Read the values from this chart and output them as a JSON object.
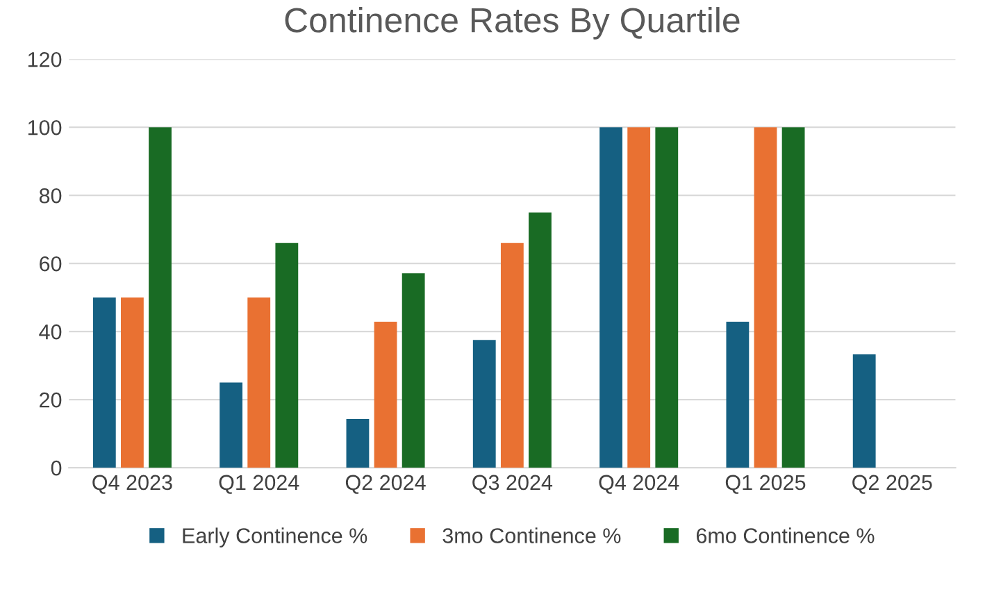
{
  "chart_data": {
    "type": "bar",
    "title": "Continence Rates By Quartile",
    "categories": [
      "Q4 2023",
      "Q1 2024",
      "Q2 2024",
      "Q3 2024",
      "Q4 2024",
      "Q1 2025",
      "Q2 2025"
    ],
    "series": [
      {
        "name": "Early Continence %",
        "color": "#156082",
        "values": [
          50,
          25,
          14.3,
          37.5,
          100,
          42.9,
          33.3
        ]
      },
      {
        "name": "3mo Continence %",
        "color": "#e97132",
        "values": [
          50,
          50,
          42.9,
          66,
          100,
          100,
          null
        ]
      },
      {
        "name": "6mo Continence %",
        "color": "#196b24",
        "values": [
          100,
          66,
          57.1,
          75,
          100,
          100,
          null
        ]
      }
    ],
    "ylim": [
      0,
      120
    ],
    "yticks": [
      0,
      20,
      40,
      60,
      80,
      100,
      120
    ],
    "grid": "y",
    "legend": "bottom"
  }
}
